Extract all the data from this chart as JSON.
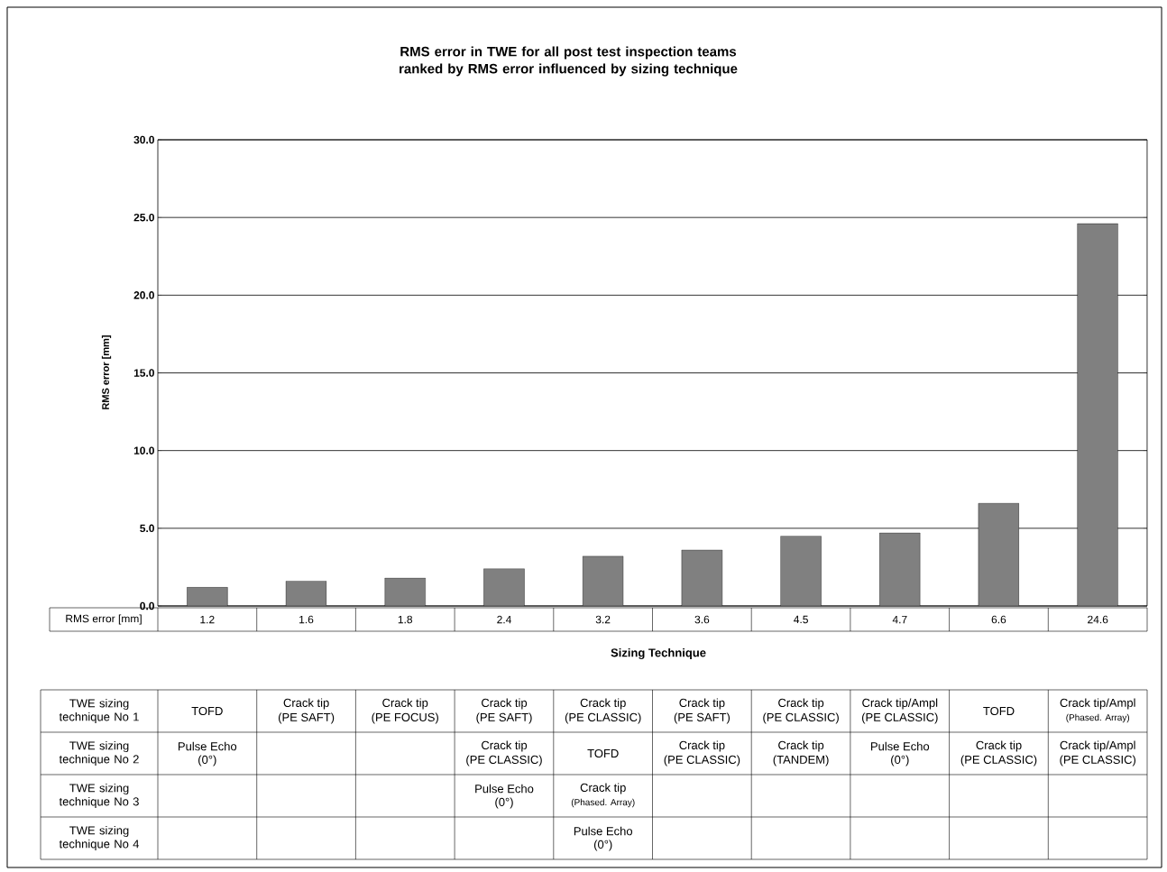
{
  "chart_data": {
    "type": "bar",
    "title": "RMS error in TWE for all post test inspection teams ranked by RMS error influenced by sizing technique",
    "xlabel": "Sizing Technique",
    "ylabel": "RMS error [mm]",
    "categories": [
      null,
      null,
      null,
      null,
      null,
      null,
      null,
      null,
      null,
      null
    ],
    "values": [
      1.2,
      1.6,
      1.8,
      2.4,
      3.2,
      3.6,
      4.5,
      4.7,
      6.6,
      24.6
    ],
    "color": "#808080",
    "ylim": [
      0,
      30
    ],
    "yticks": [
      {
        "value": 0,
        "label": "0.0"
      },
      {
        "value": 5,
        "label": "5.0"
      },
      {
        "value": 10,
        "label": "10.0"
      },
      {
        "value": 15,
        "label": "15.0"
      },
      {
        "value": 20,
        "label": "20.0"
      },
      {
        "value": 25,
        "label": "25.0"
      },
      {
        "value": 30,
        "label": "30.0"
      }
    ],
    "grid": "y",
    "data_labels": true,
    "annotations": [
      "RMS error [mm]",
      "TWE sizing technique No 1",
      "TWE sizing technique No 2",
      "TWE sizing technique No 3",
      "TWE sizing technique No 4",
      "TOFD",
      "Crack tip",
      "(PE SAFT)",
      "Crack tip",
      "(PE FOCUS)",
      "Crack tip",
      "(PE SAFT)",
      "Crack tip",
      "(PE CLASSIC)",
      "Crack tip",
      "(PE SAFT)",
      "Crack tip",
      "(PE CLASSIC)",
      "Crack tip/Ampl",
      "(PE CLASSIC)",
      "TOFD",
      "Crack tip/Ampl",
      "(Phased. Array)",
      "Pulse Echo",
      "(0°)",
      "Crack tip",
      "(PE CLASSIC)",
      "TOFD",
      "Crack tip",
      "(PE CLASSIC)",
      "Crack tip",
      "(TANDEM)",
      "Pulse Echo",
      "(0°)",
      "Crack tip",
      "(PE CLASSIC)",
      "Crack tip/Ampl",
      "(PE CLASSIC)",
      "Pulse Echo",
      "(0°)",
      "Crack tip",
      "(Phased. Array)",
      "Pulse Echo",
      "(0°)"
    ]
  }
}
